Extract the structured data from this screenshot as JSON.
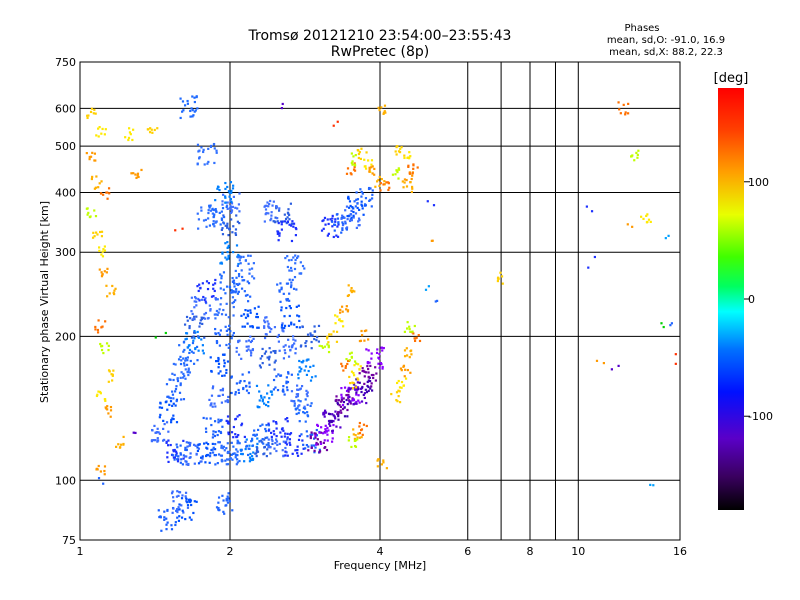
{
  "chart_data": {
    "type": "scatter",
    "title": "Tromsø 20121210 23:54:00–23:55:43",
    "subtitle": "RwPretec (8p)",
    "xlabel": "Frequency [MHz]",
    "ylabel": "Stationary phase Virtual Height [km]",
    "x_scale": "log2",
    "y_scale": "log",
    "xlim": [
      1,
      16
    ],
    "ylim": [
      75,
      750
    ],
    "x_ticks": [
      1,
      2,
      4,
      6,
      8,
      10,
      16
    ],
    "x_tick_labels": [
      "1",
      "2",
      "4",
      "6",
      "8",
      "10",
      "16"
    ],
    "x_grid": [
      1,
      2,
      4,
      6,
      7,
      8,
      9,
      10
    ],
    "y_ticks": [
      75,
      100,
      200,
      300,
      400,
      500,
      600,
      750
    ],
    "y_tick_labels": [
      "75",
      "100",
      "200",
      "300",
      "400",
      "500",
      "600",
      "750"
    ],
    "grid": true,
    "stats": {
      "header": "Phases",
      "line1": "mean, sd,O: -91.0, 16.9",
      "line2": "mean, sd,X:  88.2, 22.3"
    },
    "colorbar": {
      "label": "[deg]",
      "range": [
        -180,
        180
      ],
      "ticks": [
        100,
        0,
        -100
      ],
      "tick_labels": [
        "100",
        "0",
        "-100"
      ],
      "colormap": "rainbow",
      "placement": "right"
    },
    "series": [
      {
        "points": [
          [
            1.55,
            115
          ],
          [
            1.6,
            114
          ],
          [
            1.7,
            114
          ],
          [
            1.8,
            114
          ],
          [
            1.9,
            114
          ],
          [
            2.0,
            114
          ],
          [
            2.1,
            115
          ],
          [
            2.2,
            116
          ],
          [
            2.35,
            117
          ],
          [
            2.5,
            118
          ],
          [
            2.7,
            119
          ],
          [
            2.9,
            121
          ],
          [
            1.45,
            126
          ],
          [
            1.5,
            140
          ],
          [
            1.55,
            155
          ],
          [
            1.6,
            170
          ],
          [
            1.65,
            185
          ],
          [
            1.7,
            195
          ],
          [
            1.7,
            210
          ],
          [
            1.75,
            230
          ],
          [
            1.8,
            250
          ],
          [
            1.85,
            130
          ],
          [
            1.9,
            150
          ],
          [
            1.9,
            175
          ],
          [
            1.95,
            200
          ],
          [
            1.95,
            230
          ],
          [
            2.0,
            260
          ],
          [
            2.0,
            300
          ],
          [
            2.0,
            340
          ],
          [
            2.0,
            380
          ],
          [
            2.05,
            130
          ],
          [
            2.1,
            160
          ],
          [
            2.15,
            190
          ],
          [
            2.2,
            220
          ],
          [
            2.1,
            250
          ],
          [
            2.15,
            280
          ],
          [
            2.3,
            125
          ],
          [
            2.35,
            150
          ],
          [
            2.4,
            180
          ],
          [
            2.45,
            210
          ],
          [
            2.5,
            130
          ],
          [
            2.55,
            160
          ],
          [
            2.6,
            190
          ],
          [
            2.65,
            220
          ],
          [
            2.6,
            250
          ],
          [
            2.7,
            280
          ],
          [
            2.8,
            140
          ],
          [
            2.85,
            170
          ],
          [
            2.9,
            200
          ],
          [
            2.75,
            150
          ],
          [
            3.0,
            120
          ],
          [
            3.1,
            125
          ],
          [
            3.2,
            133
          ],
          [
            3.3,
            140
          ],
          [
            3.4,
            146
          ],
          [
            3.5,
            150
          ],
          [
            3.6,
            152
          ],
          [
            3.7,
            158
          ],
          [
            3.8,
            165
          ],
          [
            3.9,
            180
          ],
          [
            3.2,
            340
          ],
          [
            3.35,
            345
          ],
          [
            3.5,
            355
          ],
          [
            3.6,
            372
          ],
          [
            3.7,
            395
          ],
          [
            1.8,
            355
          ],
          [
            1.9,
            360
          ],
          [
            1.95,
            400
          ],
          [
            2.55,
            360
          ],
          [
            2.45,
            365
          ],
          [
            2.6,
            335
          ],
          [
            1.5,
            83
          ],
          [
            1.58,
            90
          ],
          [
            1.65,
            87
          ],
          [
            1.95,
            90
          ],
          [
            1.8,
            483
          ],
          [
            1.65,
            605
          ]
        ]
      },
      {
        "points": [
          [
            1.05,
            585
          ],
          [
            1.1,
            540
          ],
          [
            1.05,
            480
          ],
          [
            1.08,
            420
          ],
          [
            1.12,
            400
          ],
          [
            1.05,
            360
          ],
          [
            1.08,
            330
          ],
          [
            1.1,
            300
          ],
          [
            1.12,
            270
          ],
          [
            1.15,
            250
          ],
          [
            1.1,
            210
          ],
          [
            1.12,
            190
          ],
          [
            1.15,
            165
          ],
          [
            1.1,
            150
          ],
          [
            1.15,
            140
          ],
          [
            1.2,
            120
          ],
          [
            3.5,
            450
          ],
          [
            3.6,
            470
          ],
          [
            3.7,
            480
          ],
          [
            3.8,
            455
          ],
          [
            3.9,
            445
          ],
          [
            4.0,
            420
          ],
          [
            4.1,
            410
          ],
          [
            4.3,
            440
          ],
          [
            4.4,
            490
          ],
          [
            4.5,
            485
          ],
          [
            4.6,
            430
          ],
          [
            4.55,
            410
          ],
          [
            4.65,
            450
          ],
          [
            3.1,
            190
          ],
          [
            3.2,
            200
          ],
          [
            3.3,
            215
          ],
          [
            3.4,
            230
          ],
          [
            3.5,
            250
          ],
          [
            3.4,
            175
          ],
          [
            3.5,
            180
          ],
          [
            3.55,
            160
          ],
          [
            3.6,
            170
          ],
          [
            3.7,
            200
          ],
          [
            3.6,
            125
          ],
          [
            3.7,
            128
          ],
          [
            3.55,
            121
          ],
          [
            4.3,
            150
          ],
          [
            4.4,
            160
          ],
          [
            4.5,
            170
          ],
          [
            4.6,
            185
          ],
          [
            4.7,
            200
          ],
          [
            4.6,
            210
          ],
          [
            1.4,
            535
          ],
          [
            1.25,
            530
          ],
          [
            1.3,
            440
          ],
          [
            4.05,
            598
          ],
          [
            12.3,
            600
          ],
          [
            13.0,
            480
          ],
          [
            7.0,
            265
          ],
          [
            13.7,
            350
          ],
          [
            1.1,
            105
          ],
          [
            4.05,
            108
          ]
        ]
      },
      {
        "points": [
          [
            10.4,
            365
          ],
          [
            12.7,
            335
          ],
          [
            15.2,
            320
          ],
          [
            15.3,
            215
          ],
          [
            11.9,
            175
          ],
          [
            15.8,
            180
          ],
          [
            14.5,
            213
          ],
          [
            10.6,
            285
          ],
          [
            11.1,
            180
          ],
          [
            14.2,
            100
          ],
          [
            1.1,
            100
          ],
          [
            1.3,
            125
          ],
          [
            1.58,
            330
          ],
          [
            1.45,
            200
          ],
          [
            5.05,
            385
          ],
          [
            5.05,
            310
          ],
          [
            5.05,
            258
          ],
          [
            5.1,
            238
          ],
          [
            2.55,
            618
          ],
          [
            3.3,
            565
          ]
        ]
      }
    ],
    "color_hints": [
      "#1c30ff",
      "#1a60ff",
      "#3a6cff",
      "#0050ff",
      "#2266ff",
      "#2060ff",
      "#3070ff",
      "#4070ff",
      "#1f6aff",
      "#0080ff",
      "#2c5fe0",
      "#5500cc",
      "#3c00b0",
      "#7000a0",
      "#ffd000",
      "#ffea00",
      "#ff9900",
      "#ffb000",
      "#ff7000",
      "#00d000",
      "#00ff60",
      "#00a0ff",
      "#ff3000",
      "#8a00ff",
      "#c0ff00",
      "#00ffff"
    ]
  }
}
